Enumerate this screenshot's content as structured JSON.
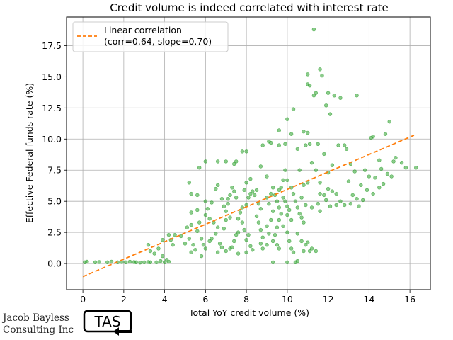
{
  "chart_data": {
    "type": "scatter",
    "title": "Credit volume is indeed correlated with interest rate",
    "xlabel": "Total YoY credit volume (%)",
    "ylabel": "Effective Federal funds rate (%)",
    "xlim": [
      -0.8,
      17.0
    ],
    "ylim": [
      -2.1,
      19.8
    ],
    "xticks": [
      0,
      2,
      4,
      6,
      8,
      10,
      12,
      14,
      16
    ],
    "yticks": [
      0.0,
      2.5,
      5.0,
      7.5,
      10.0,
      12.5,
      15.0,
      17.5
    ],
    "grid": true,
    "legend_position": "top-left",
    "colors": {
      "points": "#2ca02c",
      "fit_line": "#ff7f0e"
    },
    "fit_line": {
      "name": "Linear correlation\n(corr=0.64, slope=0.70)",
      "x": [
        0.0,
        16.2
      ],
      "y": [
        -1.05,
        10.3
      ]
    },
    "series": [
      {
        "name": "",
        "points": [
          [
            0.1,
            0.1
          ],
          [
            0.2,
            0.15
          ],
          [
            0.6,
            0.1
          ],
          [
            0.8,
            0.12
          ],
          [
            1.2,
            0.1
          ],
          [
            1.4,
            0.15
          ],
          [
            1.7,
            0.1
          ],
          [
            1.9,
            0.12
          ],
          [
            2.1,
            0.1
          ],
          [
            2.3,
            0.15
          ],
          [
            2.5,
            0.12
          ],
          [
            2.6,
            0.1
          ],
          [
            2.8,
            0.08
          ],
          [
            3.0,
            0.1
          ],
          [
            3.2,
            0.12
          ],
          [
            3.3,
            0.1
          ],
          [
            3.6,
            0.1
          ],
          [
            3.8,
            0.2
          ],
          [
            4.0,
            0.1
          ],
          [
            4.2,
            0.15
          ],
          [
            4.1,
            0.3
          ],
          [
            3.9,
            0.6
          ],
          [
            3.5,
            0.8
          ],
          [
            3.7,
            1.2
          ],
          [
            3.3,
            1.0
          ],
          [
            3.2,
            1.5
          ],
          [
            4.3,
            1.9
          ],
          [
            4.5,
            2.3
          ],
          [
            4.2,
            2.3
          ],
          [
            4.8,
            2.2
          ],
          [
            3.9,
            1.9
          ],
          [
            4.4,
            1.5
          ],
          [
            5.0,
            1.6
          ],
          [
            5.2,
            2.0
          ],
          [
            5.4,
            1.5
          ],
          [
            5.1,
            2.9
          ],
          [
            5.3,
            3.1
          ],
          [
            5.6,
            2.6
          ],
          [
            5.7,
            3.3
          ],
          [
            5.8,
            2.0
          ],
          [
            5.9,
            1.5
          ],
          [
            6.0,
            1.2
          ],
          [
            6.2,
            1.8
          ],
          [
            5.5,
            1.1
          ],
          [
            5.3,
            0.9
          ],
          [
            5.8,
            0.6
          ],
          [
            5.3,
            4.1
          ],
          [
            5.6,
            4.3
          ],
          [
            6.0,
            3.9
          ],
          [
            6.2,
            3.6
          ],
          [
            6.1,
            4.4
          ],
          [
            6.4,
            3.3
          ],
          [
            6.6,
            2.9
          ],
          [
            6.5,
            2.4
          ],
          [
            6.3,
            2.0
          ],
          [
            6.7,
            1.6
          ],
          [
            6.8,
            1.3
          ],
          [
            7.0,
            1.0
          ],
          [
            6.6,
            0.9
          ],
          [
            7.2,
            1.2
          ],
          [
            5.3,
            5.6
          ],
          [
            5.6,
            5.5
          ],
          [
            5.2,
            6.5
          ],
          [
            5.7,
            7.7
          ],
          [
            6.0,
            8.2
          ],
          [
            6.0,
            5.0
          ],
          [
            6.3,
            4.9
          ],
          [
            6.5,
            6.0
          ],
          [
            6.6,
            6.3
          ],
          [
            6.8,
            5.2
          ],
          [
            6.9,
            4.6
          ],
          [
            7.0,
            4.2
          ],
          [
            7.1,
            5.2
          ],
          [
            7.2,
            5.5
          ],
          [
            7.3,
            6.1
          ],
          [
            7.4,
            5.8
          ],
          [
            7.1,
            4.8
          ],
          [
            7.2,
            3.7
          ],
          [
            7.0,
            3.5
          ],
          [
            6.9,
            2.8
          ],
          [
            7.5,
            2.3
          ],
          [
            7.6,
            3.6
          ],
          [
            7.7,
            4.1
          ],
          [
            7.8,
            4.5
          ],
          [
            7.5,
            5.3
          ],
          [
            7.9,
            5.9
          ],
          [
            8.0,
            6.5
          ],
          [
            8.1,
            5.3
          ],
          [
            8.2,
            5.6
          ],
          [
            8.0,
            4.7
          ],
          [
            7.8,
            3.3
          ],
          [
            7.9,
            2.7
          ],
          [
            8.1,
            2.3
          ],
          [
            8.0,
            1.9
          ],
          [
            8.2,
            1.4
          ],
          [
            8.3,
            1.1
          ],
          [
            8.0,
            0.9
          ],
          [
            7.6,
            0.8
          ],
          [
            7.3,
            1.3
          ],
          [
            7.4,
            1.8
          ],
          [
            7.6,
            2.5
          ],
          [
            6.6,
            8.2
          ],
          [
            7.0,
            8.2
          ],
          [
            7.4,
            8.0
          ],
          [
            7.5,
            8.2
          ],
          [
            7.8,
            9.0
          ],
          [
            8.0,
            9.0
          ],
          [
            8.2,
            6.8
          ],
          [
            8.3,
            5.8
          ],
          [
            8.4,
            5.5
          ],
          [
            8.5,
            5.9
          ],
          [
            8.6,
            4.8
          ],
          [
            8.7,
            4.4
          ],
          [
            8.5,
            3.8
          ],
          [
            8.6,
            3.3
          ],
          [
            8.7,
            2.7
          ],
          [
            8.8,
            2.1
          ],
          [
            8.7,
            1.6
          ],
          [
            8.8,
            1.2
          ],
          [
            9.0,
            1.5
          ],
          [
            9.1,
            2.4
          ],
          [
            9.0,
            3.0
          ],
          [
            9.2,
            3.5
          ],
          [
            9.3,
            4.2
          ],
          [
            9.1,
            4.8
          ],
          [
            9.0,
            5.3
          ],
          [
            9.2,
            5.6
          ],
          [
            9.3,
            6.1
          ],
          [
            8.7,
            7.8
          ],
          [
            8.8,
            9.5
          ],
          [
            9.1,
            9.8
          ],
          [
            9.2,
            9.7
          ],
          [
            9.6,
            9.5
          ],
          [
            9.0,
            7.0
          ],
          [
            9.4,
            5.5
          ],
          [
            9.5,
            5.0
          ],
          [
            9.6,
            4.5
          ],
          [
            9.7,
            4.0
          ],
          [
            9.6,
            3.5
          ],
          [
            9.5,
            2.9
          ],
          [
            9.4,
            2.3
          ],
          [
            9.3,
            1.8
          ],
          [
            9.6,
            1.2
          ],
          [
            9.3,
            0.1
          ],
          [
            9.5,
            1.5
          ],
          [
            9.6,
            5.9
          ],
          [
            9.7,
            6.1
          ],
          [
            9.8,
            5.3
          ],
          [
            9.9,
            5.0
          ],
          [
            10.0,
            4.6
          ],
          [
            10.1,
            4.3
          ],
          [
            10.0,
            3.9
          ],
          [
            10.2,
            3.5
          ],
          [
            9.8,
            3.0
          ],
          [
            10.0,
            2.5
          ],
          [
            10.1,
            1.8
          ],
          [
            10.2,
            1.2
          ],
          [
            10.3,
            0.9
          ],
          [
            10.0,
            0.1
          ],
          [
            10.4,
            0.1
          ],
          [
            10.5,
            0.2
          ],
          [
            9.8,
            6.7
          ],
          [
            10.0,
            6.7
          ],
          [
            9.9,
            7.5
          ],
          [
            10.2,
            6.1
          ],
          [
            10.3,
            5.6
          ],
          [
            10.4,
            5.0
          ],
          [
            10.5,
            4.5
          ],
          [
            10.6,
            4.0
          ],
          [
            10.7,
            3.7
          ],
          [
            10.8,
            3.3
          ],
          [
            10.5,
            2.4
          ],
          [
            10.7,
            1.8
          ],
          [
            10.9,
            1.5
          ],
          [
            10.8,
            1.0
          ],
          [
            11.1,
            1.0
          ],
          [
            11.0,
            1.7
          ],
          [
            11.2,
            1.2
          ],
          [
            11.4,
            1.0
          ],
          [
            9.6,
            10.7
          ],
          [
            9.9,
            9.6
          ],
          [
            10.0,
            11.6
          ],
          [
            10.2,
            10.4
          ],
          [
            10.3,
            12.4
          ],
          [
            10.5,
            9.2
          ],
          [
            10.6,
            7.5
          ],
          [
            10.8,
            10.6
          ],
          [
            10.9,
            9.5
          ],
          [
            11.0,
            10.5
          ],
          [
            11.1,
            9.6
          ],
          [
            11.0,
            14.4
          ],
          [
            11.1,
            14.3
          ],
          [
            11.3,
            13.5
          ],
          [
            11.4,
            13.7
          ],
          [
            11.0,
            15.2
          ],
          [
            11.3,
            18.8
          ],
          [
            11.6,
            15.6
          ],
          [
            11.7,
            15.1
          ],
          [
            12.0,
            13.7
          ],
          [
            11.9,
            12.7
          ],
          [
            12.3,
            13.5
          ],
          [
            12.6,
            13.3
          ],
          [
            12.1,
            12.0
          ],
          [
            11.5,
            9.6
          ],
          [
            11.8,
            8.8
          ],
          [
            11.2,
            8.1
          ],
          [
            11.4,
            7.5
          ],
          [
            11.6,
            6.5
          ],
          [
            11.8,
            5.5
          ],
          [
            12.0,
            6.0
          ],
          [
            12.2,
            5.8
          ],
          [
            11.9,
            5.1
          ],
          [
            11.5,
            4.8
          ],
          [
            11.2,
            4.5
          ],
          [
            11.6,
            4.2
          ],
          [
            10.9,
            4.7
          ],
          [
            10.7,
            5.3
          ],
          [
            10.8,
            6.3
          ],
          [
            11.0,
            6.5
          ],
          [
            12.0,
            7.3
          ],
          [
            12.2,
            7.9
          ],
          [
            12.5,
            9.5
          ],
          [
            12.8,
            9.5
          ],
          [
            12.4,
            5.6
          ],
          [
            12.6,
            5.0
          ],
          [
            12.8,
            4.7
          ],
          [
            12.4,
            4.7
          ],
          [
            12.1,
            4.6
          ],
          [
            11.6,
            5.6
          ],
          [
            12.9,
            9.2
          ],
          [
            13.0,
            6.6
          ],
          [
            13.2,
            5.5
          ],
          [
            13.1,
            4.8
          ],
          [
            13.4,
            5.2
          ],
          [
            13.5,
            4.6
          ],
          [
            13.1,
            8.0
          ],
          [
            13.3,
            7.4
          ],
          [
            13.6,
            6.3
          ],
          [
            13.8,
            7.5
          ],
          [
            13.7,
            5.1
          ],
          [
            14.0,
            7.0
          ],
          [
            14.1,
            10.1
          ],
          [
            14.2,
            10.2
          ],
          [
            14.3,
            6.9
          ],
          [
            14.5,
            8.3
          ],
          [
            14.6,
            7.6
          ],
          [
            14.7,
            6.4
          ],
          [
            14.8,
            10.4
          ],
          [
            15.0,
            11.4
          ],
          [
            15.1,
            7.0
          ],
          [
            15.3,
            8.5
          ],
          [
            15.6,
            8.1
          ],
          [
            15.8,
            7.7
          ],
          [
            16.3,
            7.7
          ],
          [
            14.5,
            6.1
          ],
          [
            14.9,
            7.2
          ],
          [
            13.9,
            5.9
          ],
          [
            15.2,
            8.2
          ],
          [
            13.4,
            13.5
          ],
          [
            14.2,
            5.6
          ]
        ]
      }
    ]
  },
  "branding": {
    "company_line1": "Jacob Bayless",
    "company_line2": "Consulting Inc",
    "logo_text": "TAS"
  }
}
